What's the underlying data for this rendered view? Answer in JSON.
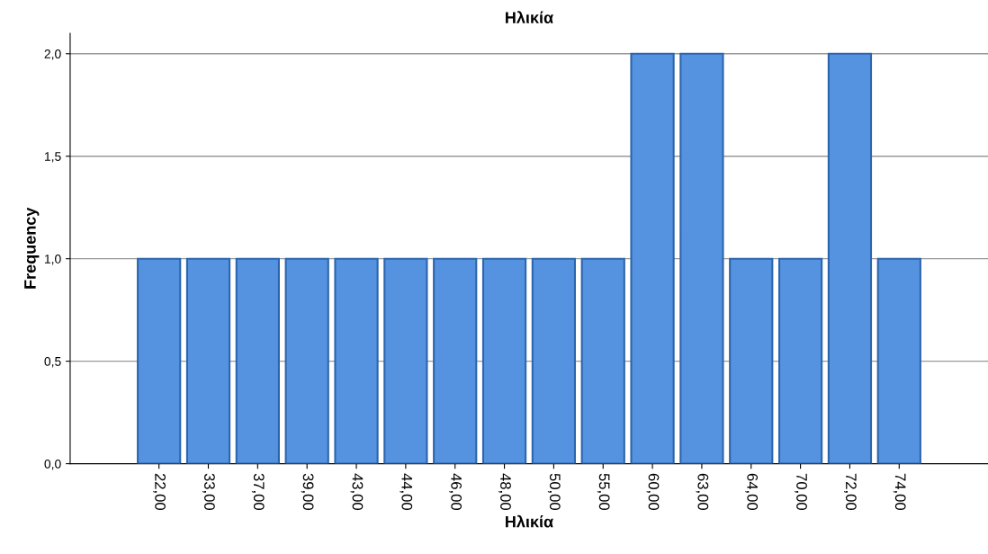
{
  "chart_data": {
    "type": "bar",
    "title": "Ηλικία",
    "xlabel": "Ηλικία",
    "ylabel": "Frequency",
    "categories": [
      "22,00",
      "33,00",
      "37,00",
      "39,00",
      "43,00",
      "44,00",
      "46,00",
      "48,00",
      "50,00",
      "55,00",
      "60,00",
      "63,00",
      "64,00",
      "70,00",
      "72,00",
      "74,00"
    ],
    "values": [
      1,
      1,
      1,
      1,
      1,
      1,
      1,
      1,
      1,
      1,
      2,
      2,
      1,
      1,
      2,
      1
    ],
    "color": "#5593e0",
    "ylim": [
      0,
      2.1
    ],
    "yticks": [
      {
        "value": 0,
        "label": "0,0"
      },
      {
        "value": 0.5,
        "label": "0,5"
      },
      {
        "value": 1,
        "label": "1,0"
      },
      {
        "value": 1.5,
        "label": "1,5"
      },
      {
        "value": 2,
        "label": "2,0"
      }
    ],
    "grid": "y"
  }
}
